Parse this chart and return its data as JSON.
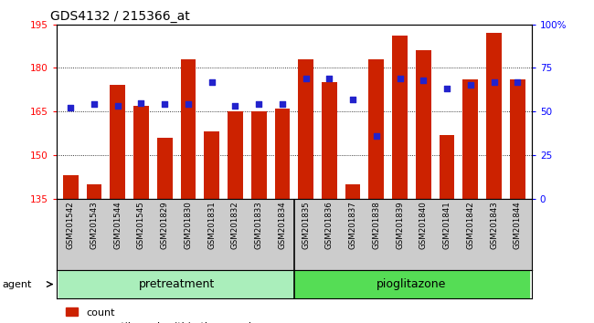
{
  "title": "GDS4132 / 215366_at",
  "samples": [
    "GSM201542",
    "GSM201543",
    "GSM201544",
    "GSM201545",
    "GSM201829",
    "GSM201830",
    "GSM201831",
    "GSM201832",
    "GSM201833",
    "GSM201834",
    "GSM201835",
    "GSM201836",
    "GSM201837",
    "GSM201838",
    "GSM201839",
    "GSM201840",
    "GSM201841",
    "GSM201842",
    "GSM201843",
    "GSM201844"
  ],
  "counts": [
    143,
    140,
    174,
    167,
    156,
    183,
    158,
    165,
    165,
    166,
    183,
    175,
    140,
    183,
    191,
    186,
    157,
    176,
    192,
    176
  ],
  "percentiles": [
    52,
    54,
    53,
    55,
    54,
    54,
    67,
    53,
    54,
    54,
    69,
    69,
    57,
    36,
    69,
    68,
    63,
    65,
    67,
    67
  ],
  "pretreatment_count": 10,
  "pioglitazone_count": 10,
  "ylim_left": [
    135,
    195
  ],
  "ylim_right": [
    0,
    100
  ],
  "yticks_left": [
    135,
    150,
    165,
    180,
    195
  ],
  "yticks_right": [
    0,
    25,
    50,
    75,
    100
  ],
  "bar_color": "#cc2200",
  "dot_color": "#2222cc",
  "pretreat_color": "#aaeebb",
  "pioglitazone_color": "#55dd55",
  "sample_band_color": "#cccccc",
  "title_fontsize": 10,
  "axis_tick_fontsize": 7.5,
  "sample_fontsize": 6.2,
  "agent_fontsize": 8,
  "band_label_fontsize": 9,
  "legend_fontsize": 8,
  "bar_width": 0.65
}
